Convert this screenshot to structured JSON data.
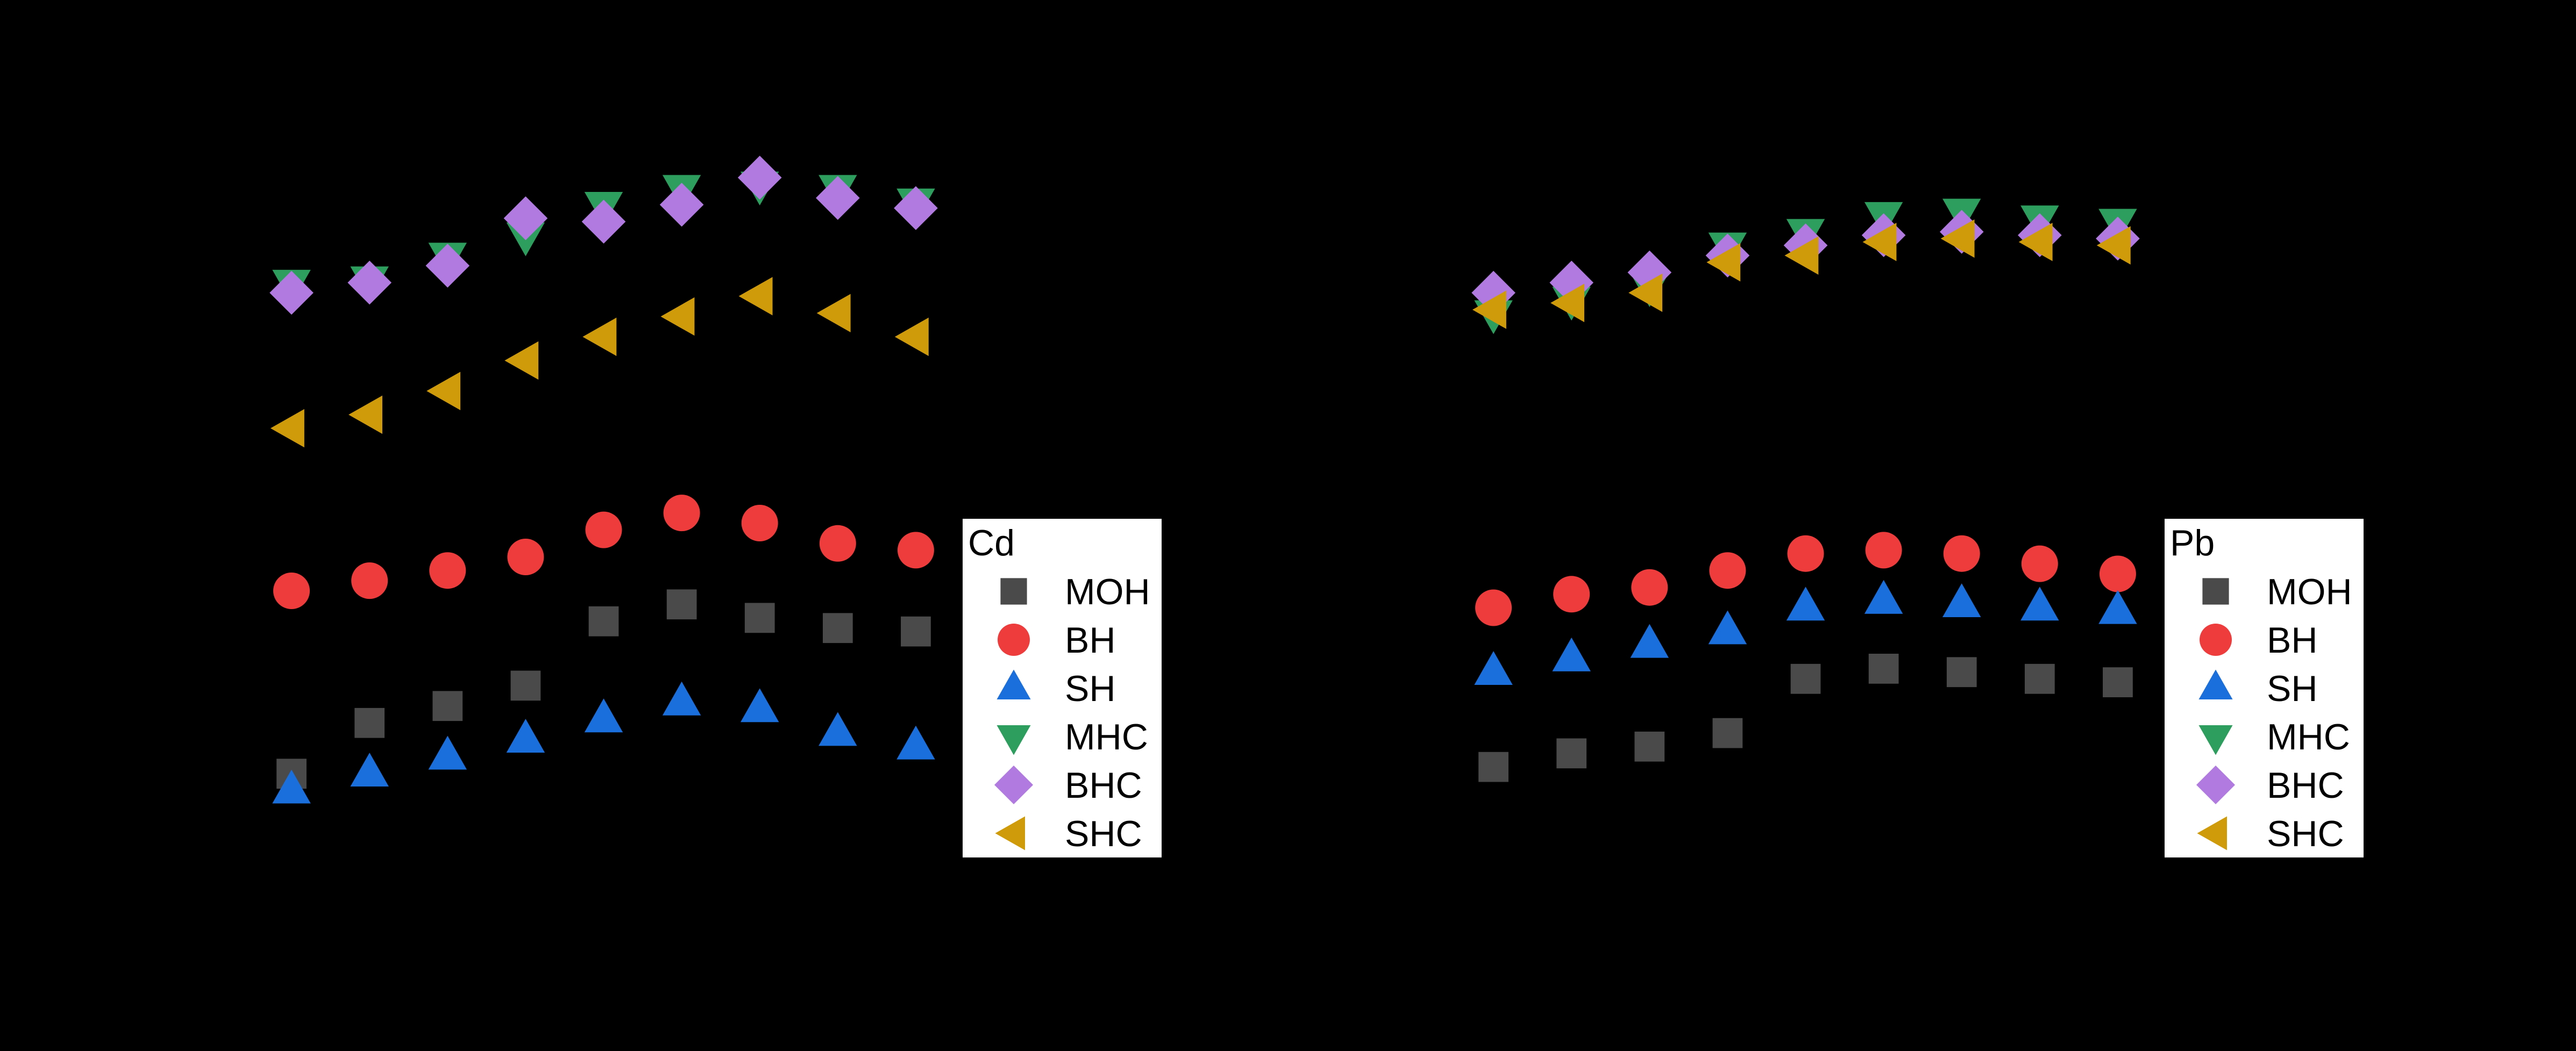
{
  "chart_data": [
    {
      "type": "scatter",
      "panel": "left",
      "legend_title": "Cd",
      "legend_position": "lower-right",
      "x": [
        1,
        2,
        3,
        4,
        5,
        6,
        7,
        8,
        9
      ],
      "xlim": [
        0.4,
        9.6
      ],
      "ylim": [
        0,
        100
      ],
      "series": [
        {
          "name": "MOH",
          "marker": "square",
          "color": "#4a4a4a",
          "values": [
            8,
            15.5,
            18,
            21,
            30.5,
            33,
            31,
            29.5,
            29
          ]
        },
        {
          "name": "BH",
          "marker": "circle",
          "color": "#ee3b3b",
          "values": [
            35,
            36.5,
            38,
            40,
            44,
            46.5,
            45,
            42,
            41
          ]
        },
        {
          "name": "SH",
          "marker": "triangle-up",
          "color": "#1a6fdc",
          "values": [
            5.5,
            8,
            10.5,
            13,
            16,
            18.5,
            17.5,
            14,
            12
          ]
        },
        {
          "name": "MHC",
          "marker": "triangle-down",
          "color": "#2e9e5e",
          "values": [
            80.5,
            81,
            84.5,
            87.5,
            92,
            94.5,
            95,
            94.5,
            92.5
          ]
        },
        {
          "name": "BHC",
          "marker": "diamond",
          "color": "#b07ae0",
          "values": [
            79,
            80.5,
            83,
            90,
            89.5,
            92,
            96,
            93,
            91.5
          ]
        },
        {
          "name": "SHC",
          "marker": "triangle-left",
          "color": "#d09b0a",
          "values": [
            59,
            61,
            64.5,
            69,
            72.5,
            75.5,
            78.5,
            76,
            72.5
          ]
        }
      ]
    },
    {
      "type": "scatter",
      "panel": "right",
      "legend_title": "Pb",
      "legend_position": "lower-right",
      "x": [
        1,
        2,
        3,
        4,
        5,
        6,
        7,
        8,
        9
      ],
      "xlim": [
        0.4,
        9.6
      ],
      "ylim": [
        0,
        100
      ],
      "series": [
        {
          "name": "MOH",
          "marker": "square",
          "color": "#4a4a4a",
          "values": [
            9,
            11,
            12,
            14,
            22,
            23.5,
            23,
            22,
            21.5
          ]
        },
        {
          "name": "BH",
          "marker": "circle",
          "color": "#ee3b3b",
          "values": [
            32.5,
            34.5,
            35.5,
            38,
            40.5,
            41,
            40.5,
            39,
            37.5
          ]
        },
        {
          "name": "SH",
          "marker": "triangle-up",
          "color": "#1a6fdc",
          "values": [
            23,
            25,
            27,
            29,
            32.5,
            33.5,
            33,
            32.5,
            32
          ]
        },
        {
          "name": "MHC",
          "marker": "triangle-down",
          "color": "#2e9e5e",
          "values": [
            76,
            78,
            80,
            86,
            88,
            90.5,
            91,
            90,
            89.5
          ]
        },
        {
          "name": "BHC",
          "marker": "diamond",
          "color": "#b07ae0",
          "values": [
            79,
            80.5,
            82,
            84.5,
            86,
            87.5,
            88,
            87.5,
            87
          ]
        },
        {
          "name": "SHC",
          "marker": "triangle-left",
          "color": "#d09b0a",
          "values": [
            76.5,
            77.5,
            79,
            83.5,
            84.5,
            86.5,
            87,
            86.5,
            86
          ]
        }
      ]
    }
  ]
}
